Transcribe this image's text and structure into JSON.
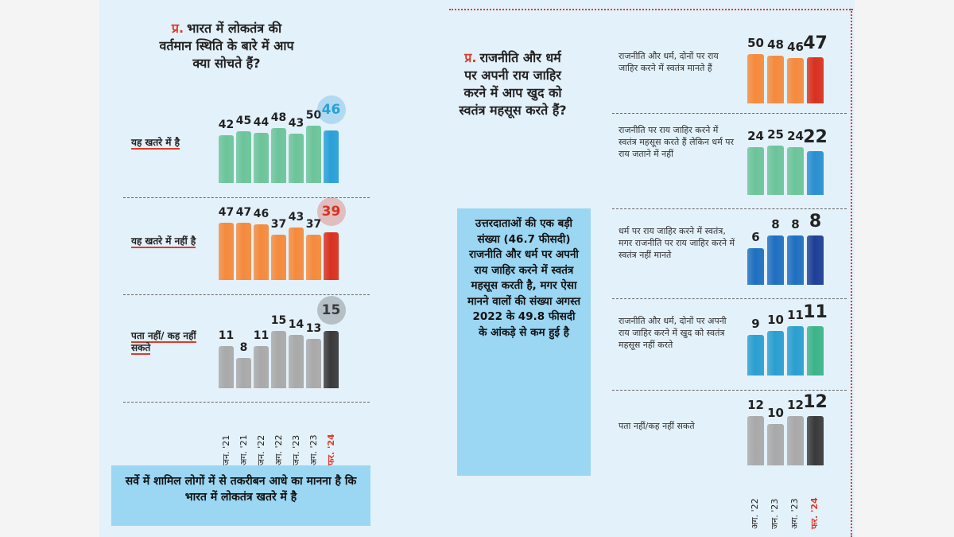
{
  "chart_data": [
    {
      "type": "bar",
      "question_marker": "प्र.",
      "title": "भारत में लोकतंत्र की वर्तमान स्थिति के बारे में आप क्या सोचते हैं?",
      "categories": [
        "जन. '21",
        "अग. '21",
        "जन. '22",
        "अग. '22",
        "जन. '23",
        "अग. '23",
        "फर. '24"
      ],
      "series": [
        {
          "name": "यह खतरे में है",
          "color": "#6cc49a",
          "latest_color": "#2a9fd8",
          "values": [
            42,
            45,
            44,
            48,
            43,
            50,
            46
          ]
        },
        {
          "name": "यह खतरे में नहीं है",
          "color": "#f58a3c",
          "latest_color": "#d9311f",
          "values": [
            47,
            47,
            46,
            37,
            43,
            37,
            39
          ]
        },
        {
          "name": "पता नहीं/ कह नहीं सकते",
          "color": "#a9a9a9",
          "latest_color": "#3a3a3a",
          "values": [
            11,
            8,
            11,
            15,
            14,
            13,
            15
          ]
        }
      ],
      "note": "सर्वे में शामिल लोगों में से तकरीबन आधे का मानना है कि भारत में लोकतंत्र खतरे में है"
    },
    {
      "type": "bar",
      "question_marker": "प्र.",
      "title": "राजनीति और धर्म पर अपनी राय जाहिर करने में आप खुद को स्वतंत्र महसूस करते हैं?",
      "categories": [
        "अग. '22",
        "जन. '23",
        "अग. '23",
        "फर. '24"
      ],
      "series": [
        {
          "name": "राजनीति और धर्म, दोनों पर राय जाहिर करने में स्वतंत्र मानते हैं",
          "color": "#f58a3c",
          "latest_color": "#d9311f",
          "values": [
            50,
            48,
            46,
            47
          ]
        },
        {
          "name": "राजनीति पर राय जाहिर करने में स्वतंत्र महसूस करते हैं लेकिन धर्म पर राय जताने में नहीं",
          "color": "#6cc49a",
          "latest_color": "#2a8fd0",
          "values": [
            24,
            25,
            24,
            22
          ]
        },
        {
          "name": "धर्म पर राय जाहिर करने में स्वतंत्र, मगर राजनीति पर राय जाहिर करने में स्वतंत्र नहीं मानते",
          "color": "#1f6fc0",
          "latest_color": "#1d3f96",
          "values": [
            6,
            8,
            8,
            8
          ]
        },
        {
          "name": "राजनीति और धर्म, दोनों पर अपनी राय जाहिर करने में खुद को स्वतंत्र महसूस नहीं करते",
          "color": "#2a9fd0",
          "latest_color": "#3cb48a",
          "values": [
            9,
            10,
            11,
            11
          ]
        },
        {
          "name": "पता नहीं/कह नहीं सकते",
          "color": "#a9a9a9",
          "latest_color": "#3a3a3a",
          "values": [
            12,
            10,
            12,
            12
          ]
        }
      ],
      "note": "उत्तरदाताओं की एक बड़ी संख्या (46.7 फीसदी) राजनीति और धर्म पर अपनी राय जाहिर करने में स्वतंत्र महसूस करती है, मगर ऐसा मानने वालों की संख्या अगस्त 2022 के 49.8 फीसदी के आंकड़े से कम हुई है"
    }
  ]
}
